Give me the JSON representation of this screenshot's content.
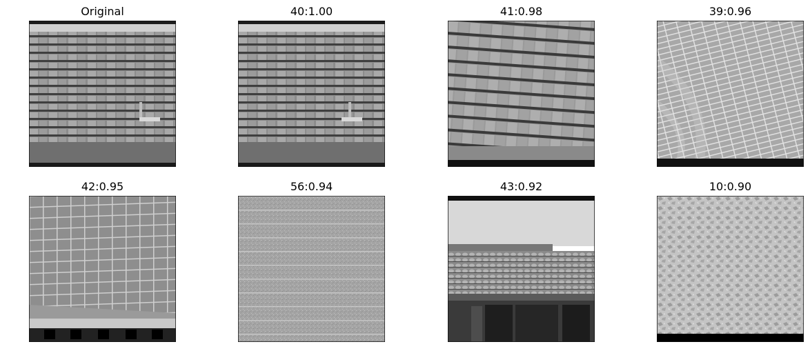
{
  "panels": [
    {
      "title": "Original",
      "scene": "roof-shingles"
    },
    {
      "title": "40:1.00",
      "scene": "roof-shingles"
    },
    {
      "title": "41:0.98",
      "scene": "tilted-shingles"
    },
    {
      "title": "39:0.96",
      "scene": "curved-brick"
    },
    {
      "title": "42:0.95",
      "scene": "tile-wall"
    },
    {
      "title": "56:0.94",
      "scene": "noisy-siding"
    },
    {
      "title": "43:0.92",
      "scene": "tile-roof-building"
    },
    {
      "title": "10:0.90",
      "scene": "stucco-texture"
    }
  ]
}
